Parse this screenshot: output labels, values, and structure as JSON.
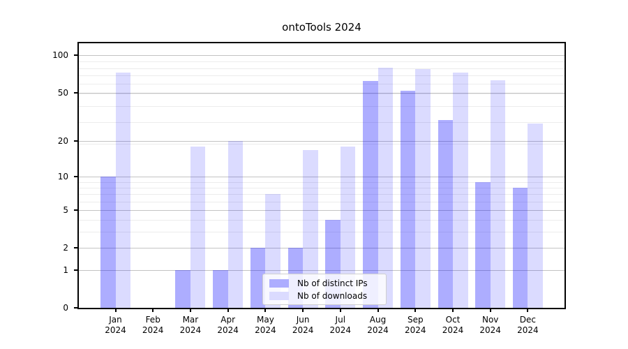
{
  "chart_data": {
    "type": "bar",
    "title": "ontoTools 2024",
    "categories": [
      "Jan",
      "Feb",
      "Mar",
      "Apr",
      "May",
      "Jun",
      "Jul",
      "Aug",
      "Sep",
      "Oct",
      "Nov",
      "Dec"
    ],
    "year_label": "2024",
    "series": [
      {
        "name": "Nb of distinct IPs",
        "color": "rgba(0,0,255,0.32)",
        "swatch": "#adadff",
        "values": [
          10,
          0,
          1,
          1,
          2,
          2,
          4,
          62,
          52,
          30,
          9,
          8
        ]
      },
      {
        "name": "Nb of downloads",
        "color": "rgba(0,0,255,0.14)",
        "swatch": "#dbdbff",
        "values": [
          73,
          0,
          18,
          20,
          7,
          17,
          18,
          80,
          78,
          73,
          63,
          28
        ]
      }
    ],
    "y_scale": "log1p",
    "ylim": [
      0,
      125
    ],
    "y_ticks": [
      0,
      1,
      2,
      5,
      10,
      20,
      50,
      100
    ],
    "y_minor_gridlines": [
      3,
      4,
      6,
      7,
      8,
      9,
      19,
      29,
      39,
      49,
      59,
      69,
      79,
      89
    ],
    "grid": true,
    "legend_position": "lower center"
  }
}
